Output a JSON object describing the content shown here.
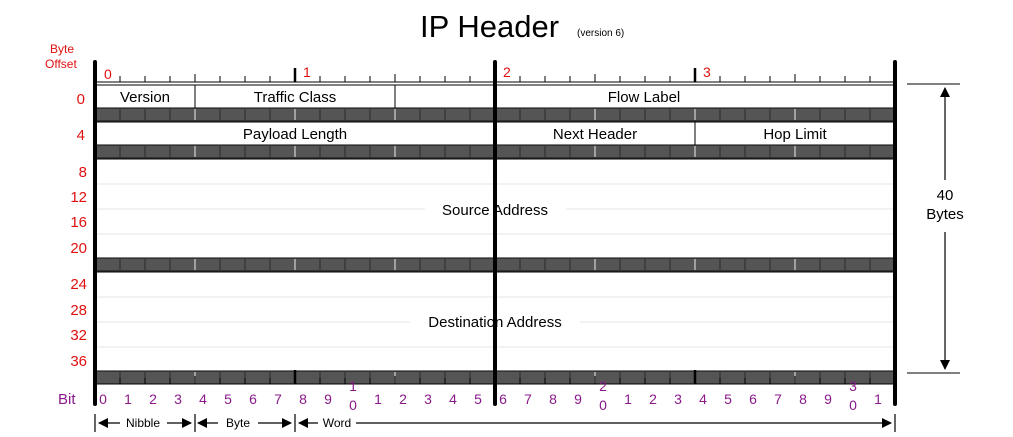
{
  "title": "IP Header",
  "subtitle": "(version 6)",
  "byte_offset_label": [
    "Byte",
    "Offset"
  ],
  "top_byte_labels": [
    "0",
    "1",
    "2",
    "3"
  ],
  "row_offsets": [
    "0",
    "4",
    "8",
    "12",
    "16",
    "20",
    "24",
    "28",
    "32",
    "36"
  ],
  "fields": {
    "version": "Version",
    "traffic_class": "Traffic Class",
    "flow_label": "Flow Label",
    "payload_length": "Payload Length",
    "next_header": "Next Header",
    "hop_limit": "Hop Limit",
    "source_address": "Source Address",
    "destination_address": "Destination Address"
  },
  "size_label": [
    "40",
    "Bytes"
  ],
  "bit_label": "Bit",
  "bit_numbers": [
    "0",
    "1",
    "2",
    "3",
    "4",
    "5",
    "6",
    "7",
    "8",
    "9",
    "1 0",
    "1",
    "2",
    "3",
    "4",
    "5",
    "6",
    "7",
    "8",
    "9",
    "2 0",
    "1",
    "2",
    "3",
    "4",
    "5",
    "6",
    "7",
    "8",
    "9",
    "3 0",
    "1"
  ],
  "scale_labels": {
    "nibble": "Nibble",
    "byte": "Byte",
    "word": "Word"
  },
  "colors": {
    "offset_red": "#e01010",
    "bit_purple": "#8a1a8a",
    "bar_gray": "#555555"
  }
}
